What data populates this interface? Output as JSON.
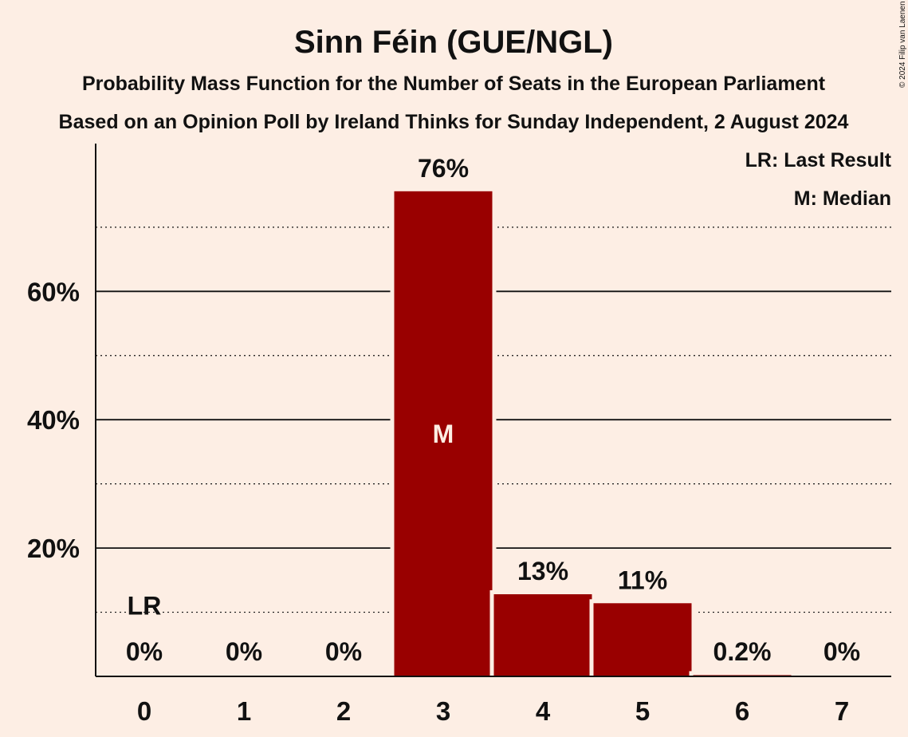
{
  "chart_data": {
    "type": "bar",
    "title": "Sinn Féin (GUE/NGL)",
    "subtitle": "Probability Mass Function for the Number of Seats in the European Parliament",
    "subtitle2": "Based on an Opinion Poll by Ireland Thinks for Sunday Independent, 2 August 2024",
    "copyright": "© 2024 Filip van Laenen",
    "categories": [
      "0",
      "1",
      "2",
      "3",
      "4",
      "5",
      "6",
      "7"
    ],
    "values": [
      0,
      0,
      0,
      75.6,
      12.8,
      11.4,
      0.2,
      0
    ],
    "value_labels": [
      "0%",
      "0%",
      "0%",
      "76%",
      "13%",
      "11%",
      "0.2%",
      "0%"
    ],
    "ylim": [
      0,
      80
    ],
    "yticks": [
      20,
      40,
      60
    ],
    "ytick_labels": [
      "20%",
      "40%",
      "60%"
    ],
    "minor_gridlines": [
      10,
      30,
      50,
      70
    ],
    "last_result": {
      "category": "0",
      "value": 10,
      "label": "LR"
    },
    "median": {
      "category": "3",
      "label": "M"
    },
    "legend": [
      "LR: Last Result",
      "M: Median"
    ],
    "legend_position": "top-right",
    "grid": true,
    "colors": {
      "bar": "#990000",
      "background": "#FDEEE4",
      "text": "#111111",
      "median_label": "#FDEEE4"
    }
  }
}
